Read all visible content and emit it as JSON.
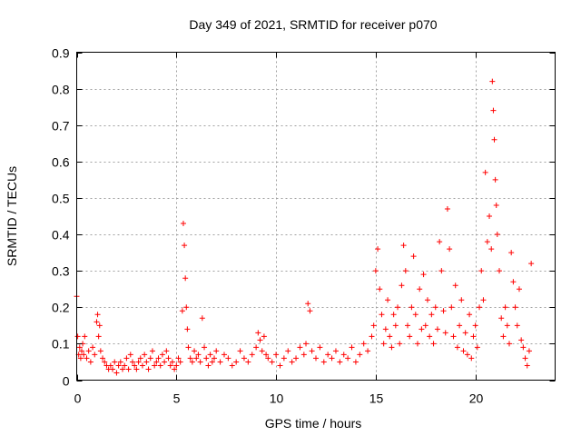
{
  "chart_data": {
    "type": "scatter",
    "title": "Day 349 of 2021, SRMTID for receiver p070",
    "xlabel": "GPS time / hours",
    "ylabel": "SRMTID / TECUs",
    "xlim": [
      0,
      24.0
    ],
    "ylim": [
      0,
      0.9
    ],
    "xticks": [
      0,
      5,
      10,
      15,
      20
    ],
    "yticks": [
      0,
      0.1,
      0.2,
      0.3,
      0.4,
      0.5,
      0.6,
      0.7,
      0.8,
      0.9
    ],
    "xtick_labels": [
      "0",
      "5",
      "10",
      "15",
      "20"
    ],
    "ytick_labels": [
      "0",
      "0.1",
      "0.2",
      "0.3",
      "0.4",
      "0.5",
      "0.6",
      "0.7",
      "0.8",
      "0.9"
    ],
    "grid": true,
    "marker": "+",
    "color": "#ff0000",
    "series": [
      {
        "name": "SRMTID",
        "x": [
          0.0,
          0.05,
          0.1,
          0.15,
          0.2,
          0.25,
          0.3,
          0.35,
          0.4,
          0.5,
          0.6,
          0.7,
          0.8,
          0.9,
          1.0,
          1.05,
          1.1,
          1.15,
          1.2,
          1.3,
          1.4,
          1.5,
          1.6,
          1.7,
          1.8,
          1.9,
          2.0,
          2.1,
          2.2,
          2.3,
          2.4,
          2.5,
          2.6,
          2.7,
          2.8,
          2.9,
          3.0,
          3.1,
          3.2,
          3.3,
          3.4,
          3.5,
          3.6,
          3.7,
          3.8,
          3.9,
          4.0,
          4.1,
          4.2,
          4.3,
          4.4,
          4.5,
          4.6,
          4.7,
          4.8,
          4.9,
          5.0,
          5.1,
          5.2,
          5.3,
          5.35,
          5.4,
          5.45,
          5.5,
          5.55,
          5.6,
          5.7,
          5.8,
          5.9,
          6.0,
          6.1,
          6.2,
          6.3,
          6.4,
          6.5,
          6.6,
          6.7,
          6.8,
          6.9,
          7.0,
          7.2,
          7.4,
          7.6,
          7.8,
          8.0,
          8.2,
          8.4,
          8.6,
          8.8,
          9.0,
          9.1,
          9.2,
          9.3,
          9.4,
          9.5,
          9.6,
          9.8,
          10.0,
          10.2,
          10.4,
          10.6,
          10.8,
          11.0,
          11.2,
          11.4,
          11.5,
          11.6,
          11.7,
          11.8,
          12.0,
          12.2,
          12.4,
          12.6,
          12.8,
          13.0,
          13.2,
          13.4,
          13.6,
          13.8,
          14.0,
          14.2,
          14.4,
          14.6,
          14.8,
          14.9,
          15.0,
          15.1,
          15.2,
          15.3,
          15.4,
          15.5,
          15.6,
          15.7,
          15.8,
          15.9,
          16.0,
          16.1,
          16.2,
          16.3,
          16.4,
          16.5,
          16.6,
          16.7,
          16.8,
          16.9,
          17.0,
          17.1,
          17.2,
          17.3,
          17.4,
          17.5,
          17.6,
          17.7,
          17.8,
          17.9,
          18.0,
          18.1,
          18.2,
          18.3,
          18.4,
          18.5,
          18.6,
          18.7,
          18.8,
          18.9,
          19.0,
          19.1,
          19.2,
          19.3,
          19.4,
          19.5,
          19.6,
          19.7,
          19.8,
          19.9,
          20.0,
          20.1,
          20.2,
          20.3,
          20.4,
          20.5,
          20.6,
          20.7,
          20.8,
          20.85,
          20.9,
          20.95,
          21.0,
          21.05,
          21.1,
          21.2,
          21.3,
          21.4,
          21.5,
          21.6,
          21.7,
          21.8,
          21.9,
          22.0,
          22.1,
          22.2,
          22.3,
          22.4,
          22.5,
          22.6,
          22.7,
          22.8
        ],
        "y": [
          0.23,
          0.12,
          0.07,
          0.09,
          0.06,
          0.08,
          0.1,
          0.07,
          0.12,
          0.06,
          0.08,
          0.05,
          0.09,
          0.07,
          0.16,
          0.18,
          0.12,
          0.15,
          0.08,
          0.06,
          0.05,
          0.04,
          0.03,
          0.04,
          0.03,
          0.05,
          0.02,
          0.04,
          0.05,
          0.03,
          0.04,
          0.06,
          0.03,
          0.07,
          0.05,
          0.04,
          0.03,
          0.05,
          0.06,
          0.04,
          0.07,
          0.05,
          0.03,
          0.06,
          0.08,
          0.04,
          0.05,
          0.06,
          0.04,
          0.07,
          0.05,
          0.08,
          0.06,
          0.04,
          0.05,
          0.03,
          0.04,
          0.06,
          0.05,
          0.19,
          0.43,
          0.37,
          0.28,
          0.2,
          0.14,
          0.09,
          0.06,
          0.05,
          0.08,
          0.06,
          0.07,
          0.05,
          0.17,
          0.09,
          0.06,
          0.04,
          0.07,
          0.05,
          0.06,
          0.08,
          0.05,
          0.07,
          0.06,
          0.04,
          0.05,
          0.08,
          0.06,
          0.05,
          0.07,
          0.09,
          0.13,
          0.11,
          0.08,
          0.12,
          0.07,
          0.06,
          0.05,
          0.07,
          0.04,
          0.06,
          0.08,
          0.05,
          0.06,
          0.09,
          0.07,
          0.1,
          0.21,
          0.19,
          0.08,
          0.06,
          0.09,
          0.05,
          0.07,
          0.06,
          0.08,
          0.05,
          0.07,
          0.06,
          0.09,
          0.05,
          0.07,
          0.1,
          0.08,
          0.12,
          0.15,
          0.3,
          0.36,
          0.25,
          0.18,
          0.1,
          0.14,
          0.22,
          0.12,
          0.09,
          0.18,
          0.15,
          0.2,
          0.1,
          0.26,
          0.37,
          0.3,
          0.15,
          0.12,
          0.2,
          0.34,
          0.18,
          0.1,
          0.25,
          0.14,
          0.29,
          0.15,
          0.22,
          0.12,
          0.18,
          0.1,
          0.2,
          0.14,
          0.38,
          0.3,
          0.19,
          0.13,
          0.47,
          0.36,
          0.2,
          0.12,
          0.26,
          0.09,
          0.15,
          0.22,
          0.08,
          0.13,
          0.07,
          0.18,
          0.06,
          0.12,
          0.15,
          0.09,
          0.2,
          0.3,
          0.22,
          0.57,
          0.38,
          0.45,
          0.36,
          0.82,
          0.74,
          0.66,
          0.55,
          0.48,
          0.4,
          0.3,
          0.17,
          0.12,
          0.2,
          0.15,
          0.1,
          0.35,
          0.27,
          0.2,
          0.15,
          0.25,
          0.11,
          0.09,
          0.06,
          0.04,
          0.08,
          0.32
        ]
      }
    ]
  }
}
